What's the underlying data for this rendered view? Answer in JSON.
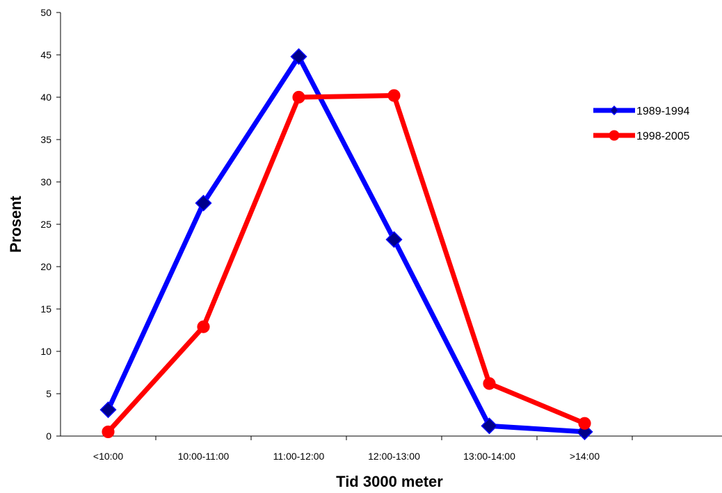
{
  "chart_data": {
    "type": "line",
    "title": "",
    "xlabel": "Tid 3000 meter",
    "ylabel": "Prosent",
    "categories": [
      "<10:00",
      "10:00-11:00",
      "11:00-12:00",
      "12:00-13:00",
      "13:00-14:00",
      ">14:00"
    ],
    "ylim": [
      0,
      50
    ],
    "yticks": [
      0,
      5,
      10,
      15,
      20,
      25,
      30,
      35,
      40,
      45,
      50
    ],
    "grid": false,
    "legend_position": "right",
    "series": [
      {
        "name": "1989-1994",
        "color": "#0000ff",
        "marker": "diamond",
        "marker_color": "#00008b",
        "values": [
          3.1,
          27.5,
          44.8,
          23.2,
          1.2,
          0.5
        ]
      },
      {
        "name": "1998-2005",
        "color": "#ff0000",
        "marker": "circle",
        "marker_color": "#ff0000",
        "values": [
          0.5,
          12.9,
          40.0,
          40.2,
          6.2,
          1.5
        ]
      }
    ]
  }
}
